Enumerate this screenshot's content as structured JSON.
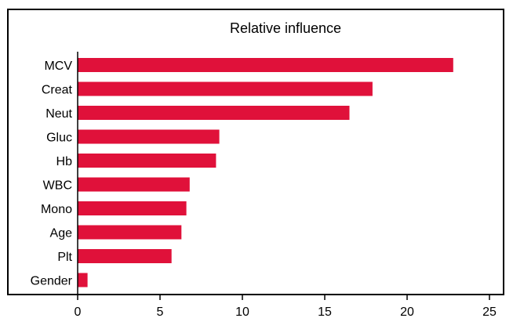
{
  "chart_data": {
    "type": "bar",
    "orientation": "horizontal",
    "title": "Relative influence",
    "xlabel": "",
    "ylabel": "",
    "categories": [
      "MCV",
      "Creat",
      "Neut",
      "Gluc",
      "Hb",
      "WBC",
      "Mono",
      "Age",
      "Plt",
      "Gender"
    ],
    "values": [
      22.8,
      17.9,
      16.5,
      8.6,
      8.4,
      6.8,
      6.6,
      6.3,
      5.7,
      0.6
    ],
    "xlim": [
      0,
      25
    ],
    "xticks": [
      "0",
      "5",
      "10",
      "15",
      "20",
      "25"
    ],
    "grid": false,
    "legend": "none",
    "bar_color": "#e0113a"
  }
}
